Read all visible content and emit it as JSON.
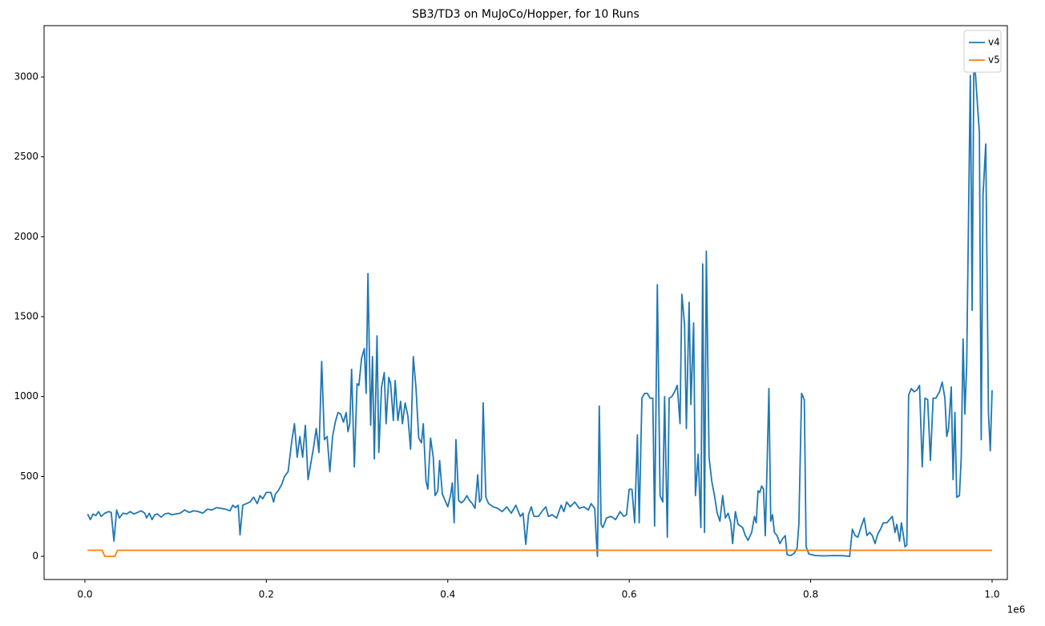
{
  "chart_data": {
    "type": "line",
    "title": "SB3/TD3 on MuJoCo/Hopper, for 10 Runs",
    "x_offset_label": "1e6",
    "xlim": [
      -0.045,
      1.0168
    ],
    "ylim": [
      -145,
      3321
    ],
    "xticks": [
      {
        "value": 0,
        "label": "0.0"
      },
      {
        "value": 0.2,
        "label": "0.2"
      },
      {
        "value": 0.4,
        "label": "0.4"
      },
      {
        "value": 0.6,
        "label": "0.6"
      },
      {
        "value": 0.8,
        "label": "0.8"
      },
      {
        "value": 1,
        "label": "1.0"
      }
    ],
    "yticks": [
      0,
      500,
      1000,
      1500,
      2000,
      2500,
      3000
    ],
    "grid": false,
    "legend": "upper right",
    "series": [
      {
        "name": "v4",
        "color": "#1f77b4",
        "x": [
          0.003,
          0.006,
          0.009,
          0.012,
          0.015,
          0.018,
          0.022,
          0.026,
          0.029,
          0.032,
          0.035,
          0.038,
          0.042,
          0.046,
          0.05,
          0.054,
          0.058,
          0.062,
          0.066,
          0.068,
          0.071,
          0.074,
          0.077,
          0.08,
          0.084,
          0.088,
          0.092,
          0.096,
          0.1,
          0.105,
          0.11,
          0.115,
          0.12,
          0.125,
          0.13,
          0.135,
          0.14,
          0.145,
          0.15,
          0.155,
          0.16,
          0.163,
          0.166,
          0.169,
          0.171,
          0.174,
          0.178,
          0.182,
          0.186,
          0.19,
          0.193,
          0.196,
          0.2,
          0.205,
          0.208,
          0.21,
          0.213,
          0.217,
          0.22,
          0.224,
          0.228,
          0.231,
          0.234,
          0.237,
          0.24,
          0.243,
          0.246,
          0.249,
          0.252,
          0.255,
          0.258,
          0.261,
          0.264,
          0.267,
          0.27,
          0.273,
          0.276,
          0.279,
          0.282,
          0.285,
          0.288,
          0.29,
          0.292,
          0.294,
          0.297,
          0.3,
          0.302,
          0.305,
          0.308,
          0.31,
          0.312,
          0.315,
          0.317,
          0.319,
          0.322,
          0.324,
          0.327,
          0.33,
          0.332,
          0.335,
          0.337,
          0.34,
          0.342,
          0.345,
          0.348,
          0.35,
          0.353,
          0.356,
          0.359,
          0.362,
          0.365,
          0.368,
          0.371,
          0.373,
          0.376,
          0.378,
          0.381,
          0.384,
          0.386,
          0.389,
          0.391,
          0.394,
          0.397,
          0.4,
          0.403,
          0.405,
          0.407,
          0.409,
          0.412,
          0.415,
          0.418,
          0.421,
          0.424,
          0.427,
          0.43,
          0.433,
          0.435,
          0.437,
          0.439,
          0.442,
          0.445,
          0.45,
          0.455,
          0.46,
          0.465,
          0.47,
          0.475,
          0.48,
          0.483,
          0.486,
          0.489,
          0.492,
          0.495,
          0.5,
          0.505,
          0.508,
          0.511,
          0.515,
          0.52,
          0.525,
          0.528,
          0.531,
          0.535,
          0.54,
          0.545,
          0.55,
          0.555,
          0.558,
          0.562,
          0.564,
          0.565,
          0.567,
          0.569,
          0.571,
          0.575,
          0.58,
          0.585,
          0.59,
          0.594,
          0.597,
          0.6,
          0.603,
          0.606,
          0.609,
          0.611,
          0.614,
          0.617,
          0.62,
          0.623,
          0.626,
          0.628,
          0.631,
          0.634,
          0.637,
          0.639,
          0.642,
          0.644,
          0.647,
          0.65,
          0.653,
          0.656,
          0.658,
          0.661,
          0.663,
          0.666,
          0.668,
          0.671,
          0.673,
          0.676,
          0.679,
          0.681,
          0.683,
          0.685,
          0.688,
          0.691,
          0.694,
          0.697,
          0.7,
          0.703,
          0.706,
          0.709,
          0.712,
          0.714,
          0.717,
          0.72,
          0.725,
          0.728,
          0.731,
          0.735,
          0.738,
          0.74,
          0.742,
          0.744,
          0.746,
          0.748,
          0.75,
          0.752,
          0.754,
          0.756,
          0.758,
          0.76,
          0.763,
          0.766,
          0.769,
          0.772,
          0.774,
          0.778,
          0.782,
          0.785,
          0.787,
          0.79,
          0.793,
          0.795,
          0.798,
          0.805,
          0.815,
          0.825,
          0.835,
          0.843,
          0.846,
          0.849,
          0.852,
          0.856,
          0.859,
          0.862,
          0.865,
          0.868,
          0.871,
          0.874,
          0.877,
          0.88,
          0.884,
          0.887,
          0.89,
          0.893,
          0.895,
          0.898,
          0.9,
          0.902,
          0.904,
          0.906,
          0.908,
          0.911,
          0.914,
          0.917,
          0.92,
          0.923,
          0.926,
          0.929,
          0.932,
          0.935,
          0.938,
          0.942,
          0.945,
          0.948,
          0.95,
          0.952,
          0.955,
          0.957,
          0.959,
          0.961,
          0.964,
          0.966,
          0.968,
          0.97,
          0.972,
          0.976,
          0.978,
          0.98,
          0.983,
          0.986,
          0.988,
          0.99,
          0.993,
          0.996,
          0.998,
          1.0
        ],
        "values": [
          265,
          230,
          265,
          255,
          280,
          250,
          270,
          280,
          275,
          95,
          290,
          240,
          270,
          265,
          280,
          265,
          275,
          285,
          270,
          240,
          270,
          230,
          260,
          265,
          245,
          265,
          270,
          260,
          265,
          270,
          290,
          275,
          285,
          280,
          270,
          295,
          290,
          305,
          300,
          295,
          285,
          320,
          305,
          320,
          135,
          320,
          330,
          340,
          370,
          330,
          380,
          360,
          400,
          400,
          340,
          390,
          410,
          450,
          500,
          530,
          720,
          830,
          620,
          750,
          620,
          820,
          480,
          580,
          680,
          800,
          650,
          1220,
          730,
          750,
          530,
          750,
          840,
          900,
          890,
          840,
          900,
          780,
          830,
          1170,
          560,
          1080,
          1070,
          1240,
          1300,
          1020,
          1770,
          820,
          1250,
          610,
          1380,
          650,
          1060,
          1150,
          830,
          1120,
          1080,
          850,
          1100,
          850,
          970,
          830,
          960,
          880,
          670,
          1250,
          1050,
          740,
          710,
          830,
          470,
          420,
          740,
          620,
          380,
          410,
          600,
          390,
          350,
          310,
          380,
          460,
          210,
          730,
          350,
          335,
          350,
          380,
          350,
          330,
          300,
          510,
          340,
          360,
          960,
          370,
          330,
          310,
          300,
          280,
          310,
          270,
          320,
          250,
          270,
          75,
          260,
          310,
          250,
          250,
          290,
          310,
          250,
          260,
          240,
          320,
          280,
          340,
          310,
          340,
          300,
          310,
          290,
          330,
          300,
          80,
          0,
          940,
          200,
          180,
          240,
          250,
          230,
          280,
          250,
          260,
          420,
          420,
          210,
          760,
          210,
          990,
          1020,
          1020,
          990,
          990,
          190,
          1700,
          380,
          340,
          1000,
          120,
          990,
          1000,
          1030,
          1070,
          830,
          1640,
          1450,
          800,
          1590,
          950,
          1460,
          380,
          640,
          180,
          1830,
          150,
          1910,
          620,
          470,
          380,
          270,
          220,
          380,
          240,
          270,
          210,
          80,
          280,
          200,
          180,
          130,
          100,
          150,
          250,
          210,
          410,
          400,
          440,
          420,
          130,
          580,
          1050,
          220,
          260,
          150,
          130,
          80,
          110,
          130,
          10,
          5,
          20,
          50,
          200,
          1020,
          980,
          60,
          15,
          5,
          3,
          5,
          4,
          0,
          170,
          130,
          120,
          190,
          240,
          130,
          150,
          130,
          80,
          140,
          170,
          210,
          210,
          230,
          250,
          150,
          200,
          95,
          210,
          140,
          60,
          70,
          1010,
          1050,
          1030,
          1040,
          1070,
          560,
          990,
          980,
          600,
          990,
          990,
          1030,
          1090,
          990,
          750,
          800,
          1060,
          480,
          900,
          370,
          380,
          620,
          1360,
          890,
          1200,
          3010,
          1540,
          3160,
          2900,
          2650,
          730,
          2260,
          2580,
          900,
          660,
          1040
        ]
      },
      {
        "name": "v5",
        "color": "#ff7f0e",
        "x": [
          0.003,
          0.019,
          0.022,
          0.033,
          0.036,
          1.0
        ],
        "values": [
          38,
          38,
          0,
          0,
          38,
          38
        ]
      }
    ]
  }
}
